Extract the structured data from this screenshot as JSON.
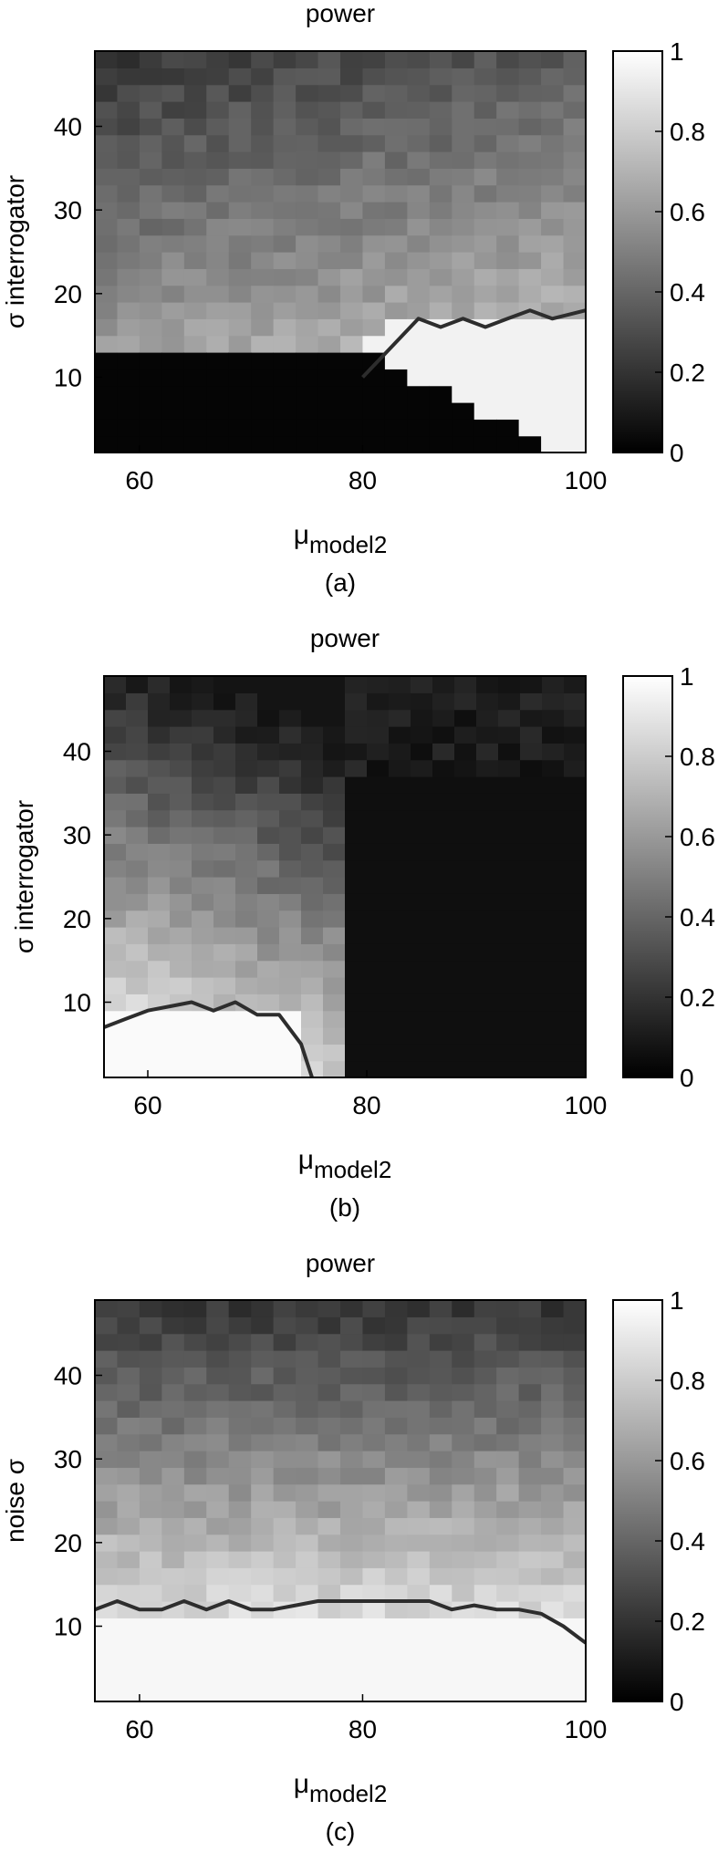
{
  "chart_data": [
    {
      "panel": "(a)",
      "type": "heatmap",
      "title": "power",
      "xlabel": "μ",
      "xlabel_sub": "model2",
      "ylabel": "σ interrogator",
      "xlim": [
        56,
        100
      ],
      "ylim": [
        1,
        49
      ],
      "x_ticks": [
        60,
        80,
        100
      ],
      "y_ticks": [
        10,
        20,
        30,
        40
      ],
      "colorbar": {
        "range": [
          0,
          1
        ],
        "ticks": [
          "0",
          "0.2",
          "0.4",
          "0.6",
          "0.8",
          "1"
        ],
        "colormap": "gray"
      },
      "description": "power is high (white) in the lower-right region enclosed by the contour; black region at low σ and low μ",
      "contour_level": 0.8,
      "contour": [
        [
          80,
          10
        ],
        [
          85,
          17
        ],
        [
          87,
          16
        ],
        [
          89,
          17
        ],
        [
          91,
          16
        ],
        [
          93,
          17
        ],
        [
          95,
          18
        ],
        [
          97,
          17
        ],
        [
          100,
          18
        ]
      ]
    },
    {
      "panel": "(b)",
      "type": "heatmap",
      "title": "power",
      "xlabel": "μ",
      "xlabel_sub": "model2",
      "ylabel": "σ interrogator",
      "xlim": [
        56,
        100
      ],
      "ylim": [
        1,
        49
      ],
      "x_ticks": [
        60,
        80,
        100
      ],
      "y_ticks": [
        10,
        20,
        30,
        40
      ],
      "colorbar": {
        "range": [
          0,
          1
        ],
        "ticks": [
          "0",
          "0.2",
          "0.4",
          "0.6",
          "0.8",
          "1"
        ],
        "colormap": "gray"
      },
      "description": "power is high (white) in the lower-left region enclosed by the contour; black region for μ above about 78",
      "contour_level": 0.8,
      "contour": [
        [
          56,
          7
        ],
        [
          58,
          8
        ],
        [
          60,
          9
        ],
        [
          62,
          9.5
        ],
        [
          64,
          10
        ],
        [
          66,
          9
        ],
        [
          68,
          10
        ],
        [
          70,
          8.5
        ],
        [
          72,
          8.5
        ],
        [
          74,
          5
        ],
        [
          75,
          1
        ]
      ]
    },
    {
      "panel": "(c)",
      "type": "heatmap",
      "title": "power",
      "xlabel": "μ",
      "xlabel_sub": "model2",
      "ylabel": "noise σ",
      "xlim": [
        56,
        100
      ],
      "ylim": [
        1,
        49
      ],
      "x_ticks": [
        60,
        80,
        100
      ],
      "y_ticks": [
        10,
        20,
        30,
        40
      ],
      "colorbar": {
        "range": [
          0,
          1
        ],
        "ticks": [
          "0",
          "0.2",
          "0.4",
          "0.6",
          "0.8",
          "1"
        ],
        "colormap": "gray"
      },
      "description": "power near 1 below noise σ of about 12 for all μ, decreasing toward dark gray at large noise σ",
      "contour_level": 0.8,
      "contour": [
        [
          56,
          12
        ],
        [
          58,
          13
        ],
        [
          60,
          12
        ],
        [
          62,
          12
        ],
        [
          64,
          13
        ],
        [
          66,
          12
        ],
        [
          68,
          13
        ],
        [
          70,
          12
        ],
        [
          72,
          12
        ],
        [
          74,
          12.5
        ],
        [
          76,
          13
        ],
        [
          78,
          13
        ],
        [
          80,
          13
        ],
        [
          82,
          13
        ],
        [
          84,
          13
        ],
        [
          86,
          13
        ],
        [
          88,
          12
        ],
        [
          90,
          12.5
        ],
        [
          92,
          12
        ],
        [
          94,
          12
        ],
        [
          96,
          11.5
        ],
        [
          98,
          10
        ],
        [
          100,
          8
        ]
      ]
    }
  ]
}
